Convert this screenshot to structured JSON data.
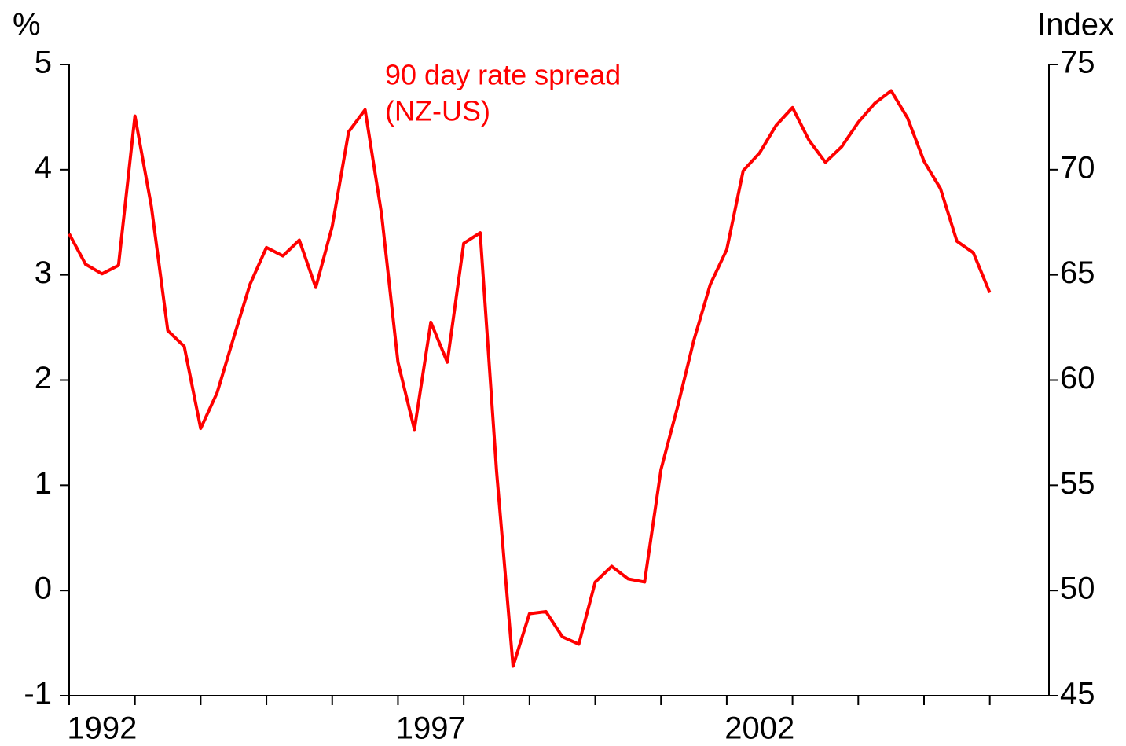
{
  "chart_data": {
    "type": "line",
    "y_axis_label": "%",
    "y2_axis_label": "Index",
    "annotation": [
      "90 day rate spread",
      "(NZ-US)"
    ],
    "x": [
      1992,
      1992.25,
      1992.5,
      1992.75,
      1993,
      1993.25,
      1993.5,
      1993.75,
      1994,
      1994.25,
      1994.5,
      1994.75,
      1995,
      1995.25,
      1995.5,
      1995.75,
      1996,
      1996.25,
      1996.5,
      1996.75,
      1997,
      1997.25,
      1997.5,
      1997.75,
      1998,
      1998.25,
      1998.5,
      1998.75,
      1999,
      1999.25,
      1999.5,
      1999.75,
      2000,
      2000.25,
      2000.5,
      2000.75,
      2001,
      2001.25,
      2001.5,
      2001.75,
      2002,
      2002.25,
      2002.5,
      2002.75,
      2003,
      2003.25,
      2003.5,
      2003.75,
      2004,
      2004.25,
      2004.5,
      2004.75,
      2005,
      2005.25,
      2005.5,
      2005.75,
      2006
    ],
    "series": [
      {
        "name": "90 day rate spread (NZ-US)",
        "color": "#ff0000",
        "values": [
          3.39,
          3.1,
          3.01,
          3.09,
          4.51,
          3.65,
          2.47,
          2.32,
          1.54,
          1.88,
          2.4,
          2.91,
          3.26,
          3.18,
          3.33,
          2.88,
          3.46,
          4.36,
          4.57,
          3.58,
          2.17,
          1.53,
          2.55,
          2.17,
          3.3,
          3.4,
          1.13,
          -0.72,
          -0.22,
          -0.2,
          -0.44,
          -0.51,
          0.08,
          0.23,
          0.11,
          0.08,
          1.15,
          1.74,
          2.38,
          2.91,
          3.24,
          3.99,
          4.16,
          4.42,
          4.59,
          4.28,
          4.07,
          4.22,
          4.45,
          4.63,
          4.75,
          4.49,
          4.08,
          3.82,
          3.32,
          3.21,
          2.83
        ]
      }
    ],
    "xlim": [
      1992,
      2006.9
    ],
    "xticks": [
      1992,
      1993,
      1994,
      1995,
      1996,
      1997,
      1998,
      1999,
      2000,
      2001,
      2002,
      2003,
      2004,
      2005,
      2006
    ],
    "xlabels": [
      1992,
      1997,
      2002
    ],
    "ylim": [
      -1,
      5
    ],
    "yticks": [
      -1,
      0,
      1,
      2,
      3,
      4,
      5
    ],
    "y2lim": [
      45,
      75
    ],
    "y2ticks": [
      45,
      50,
      55,
      60,
      65,
      70,
      75
    ],
    "grid": false
  }
}
